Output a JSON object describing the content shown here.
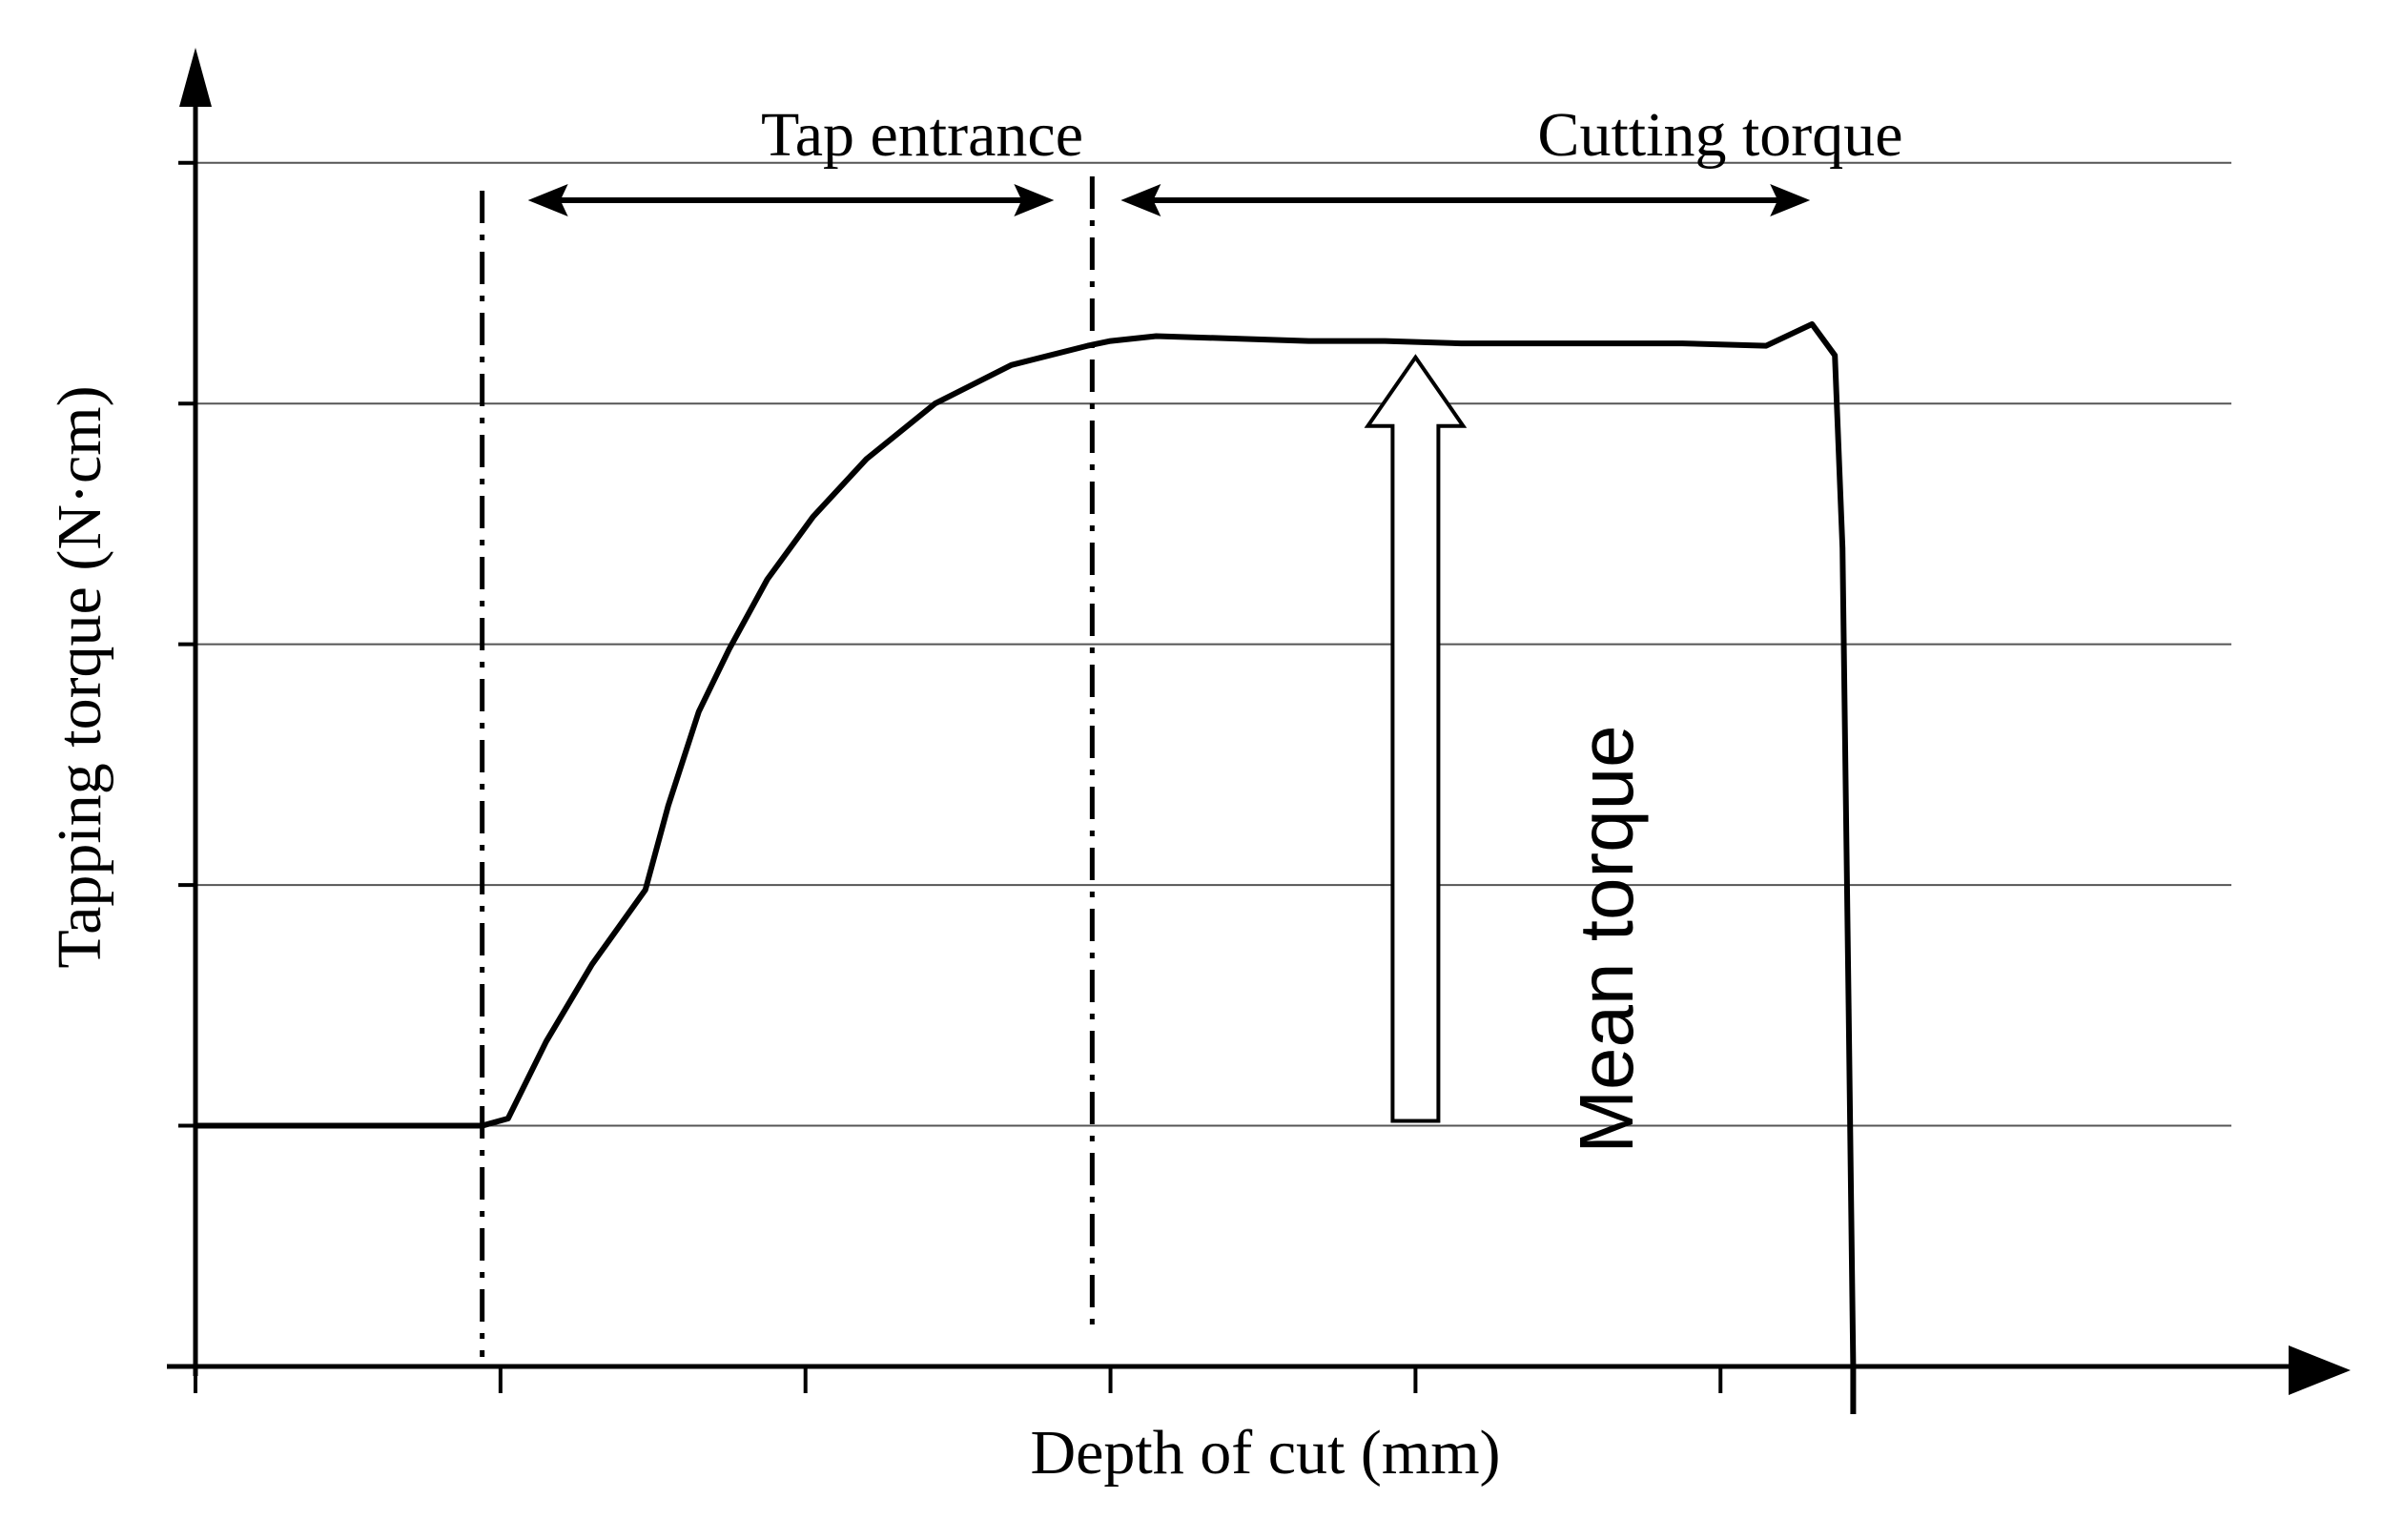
{
  "chart_data": {
    "type": "line",
    "title": "",
    "xlabel": "Depth of cut (mm)",
    "ylabel": "Tapping torque (N·cm)",
    "xlim": [
      0,
      13.4
    ],
    "ylim": [
      0,
      5.3
    ],
    "x_ticks": [
      0,
      2,
      4,
      6,
      8,
      10
    ],
    "y_gridlines": [
      1,
      2,
      3,
      4,
      5
    ],
    "grid": "horizontal",
    "legend": "none",
    "line_color": "#000000",
    "series": [
      {
        "name": "",
        "x": [
          0,
          0.6,
          1.2,
          1.8,
          1.88,
          2.05,
          2.3,
          2.6,
          2.95,
          3.1,
          3.3,
          3.5,
          3.75,
          4.05,
          4.4,
          4.85,
          5.35,
          5.85,
          6.0,
          6.3,
          6.8,
          7.3,
          7.8,
          8.3,
          8.8,
          9.3,
          9.75,
          10.3,
          10.6,
          10.75,
          10.8,
          10.84,
          10.87
        ],
        "y": [
          1.0,
          1.0,
          1.0,
          1.0,
          1.0,
          1.03,
          1.35,
          1.67,
          1.98,
          2.33,
          2.72,
          2.98,
          3.27,
          3.53,
          3.77,
          4.0,
          4.16,
          4.24,
          4.26,
          4.28,
          4.27,
          4.26,
          4.26,
          4.25,
          4.25,
          4.25,
          4.25,
          4.24,
          4.33,
          4.2,
          3.4,
          1.5,
          0.0
        ]
      }
    ]
  },
  "annotations": {
    "tap_entrance": "Tap entrance",
    "cutting_torque": "Cutting torque",
    "mean_torque": "Mean torque"
  },
  "markers": {
    "tap_start_x": 1.88,
    "tap_end_x": 5.88,
    "cutting_end_x": 10.6,
    "mean_torque_y": 4.2,
    "mean_torque_arrow_x": 8.0
  }
}
